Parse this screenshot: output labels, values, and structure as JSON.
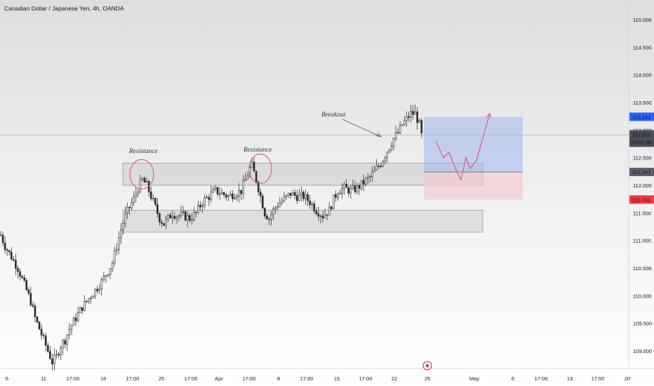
{
  "title": "Canadian Dollar / Japanese Yen, 4h, OANDA",
  "chart_data": {
    "type": "candlestick",
    "symbol": "Canadian Dollar / Japanese Yen",
    "interval": "4h",
    "exchange": "OANDA",
    "ylim": [
      108.6,
      115.3
    ],
    "y_ticks": [
      "115.000",
      "114.500",
      "114.000",
      "113.500",
      "113.000",
      "112.500",
      "112.000",
      "111.500",
      "111.000",
      "110.500",
      "110.000",
      "109.500",
      "109.000"
    ],
    "x_ticks": [
      "6",
      "11",
      "17:00",
      "18",
      "17:00",
      "25",
      "17:00",
      "Apr",
      "17:00",
      "8",
      "17:00",
      "15",
      "17:00",
      "22",
      "25",
      "May",
      "6",
      "17:00",
      "13",
      "17:00",
      "20"
    ],
    "close_path": [
      [
        0,
        111.1
      ],
      [
        2,
        110.9
      ],
      [
        5,
        110.7
      ],
      [
        8,
        110.5
      ],
      [
        10,
        110.3
      ],
      [
        12,
        110.1
      ],
      [
        14,
        109.9
      ],
      [
        16,
        109.6
      ],
      [
        18,
        109.4
      ],
      [
        20,
        109.2
      ],
      [
        22,
        109.0
      ],
      [
        24,
        108.8
      ],
      [
        26,
        108.9
      ],
      [
        28,
        109.1
      ],
      [
        30,
        109.2
      ],
      [
        32,
        109.4
      ],
      [
        35,
        109.6
      ],
      [
        38,
        109.8
      ],
      [
        41,
        109.95
      ],
      [
        44,
        110.1
      ],
      [
        47,
        110.25
      ],
      [
        50,
        110.45
      ],
      [
        52,
        110.6
      ],
      [
        54,
        110.9
      ],
      [
        56,
        111.2
      ],
      [
        58,
        111.45
      ],
      [
        60,
        111.6
      ],
      [
        62,
        111.75
      ],
      [
        64,
        111.95
      ],
      [
        66,
        112.1
      ],
      [
        68,
        112.0
      ],
      [
        70,
        111.8
      ],
      [
        72,
        111.6
      ],
      [
        74,
        111.4
      ],
      [
        76,
        111.3
      ],
      [
        78,
        111.4
      ],
      [
        80,
        111.5
      ],
      [
        82,
        111.45
      ],
      [
        85,
        111.45
      ],
      [
        88,
        111.4
      ],
      [
        91,
        111.5
      ],
      [
        94,
        111.7
      ],
      [
        97,
        111.8
      ],
      [
        100,
        111.9
      ],
      [
        103,
        111.85
      ],
      [
        106,
        111.8
      ],
      [
        109,
        111.85
      ],
      [
        112,
        111.9
      ],
      [
        114,
        112.1
      ],
      [
        116,
        112.3
      ],
      [
        117,
        112.35
      ],
      [
        119,
        112.1
      ],
      [
        121,
        111.8
      ],
      [
        123,
        111.5
      ],
      [
        125,
        111.4
      ],
      [
        127,
        111.55
      ],
      [
        129,
        111.65
      ],
      [
        132,
        111.75
      ],
      [
        135,
        111.85
      ],
      [
        138,
        111.8
      ],
      [
        141,
        111.8
      ],
      [
        144,
        111.7
      ],
      [
        147,
        111.55
      ],
      [
        150,
        111.45
      ],
      [
        153,
        111.55
      ],
      [
        155,
        111.75
      ],
      [
        157,
        111.9
      ],
      [
        160,
        111.95
      ],
      [
        163,
        111.9
      ],
      [
        166,
        111.95
      ],
      [
        169,
        112.05
      ],
      [
        172,
        112.15
      ],
      [
        175,
        112.3
      ],
      [
        177,
        112.4
      ],
      [
        179,
        112.55
      ],
      [
        181,
        112.7
      ],
      [
        183,
        112.85
      ],
      [
        185,
        112.95
      ],
      [
        187,
        113.1
      ],
      [
        189,
        113.2
      ],
      [
        191,
        113.3
      ],
      [
        193,
        113.3
      ],
      [
        195,
        113.1
      ],
      [
        196,
        112.9
      ]
    ],
    "zones": [
      {
        "name": "upper",
        "from": 112.0,
        "to": 112.4
      },
      {
        "name": "lower",
        "from": 111.15,
        "to": 111.55
      }
    ],
    "annotations": [
      "Resistance",
      "Resistance",
      "Breakout"
    ],
    "position": {
      "target": "113.241",
      "entry": "112.241",
      "stop": "111.741"
    },
    "current_price": "112.911",
    "countdown": "03:52:36",
    "forecast_path": [
      [
        112.8
      ],
      [
        112.5
      ],
      [
        112.6
      ],
      [
        112.3
      ],
      [
        112.1
      ],
      [
        112.5
      ],
      [
        112.3
      ],
      [
        112.45
      ],
      [
        113.3
      ]
    ]
  }
}
